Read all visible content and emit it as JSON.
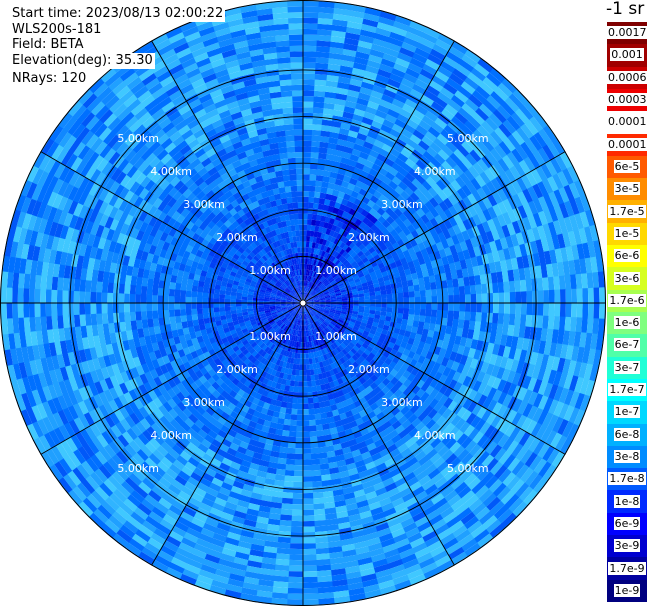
{
  "header": {
    "start_time": "Start time: 2023/08/13 02:00:22",
    "instrument": "WLS200s-181",
    "field": "Field: BETA",
    "elevation": "Elevation(deg): 35.30",
    "nrays": "NRays: 120"
  },
  "colorbar": {
    "unit": "-1 sr",
    "labels": [
      "0.0017",
      "0.001",
      "0.0006",
      "0.0003",
      "0.00017",
      "0.0001",
      "6e-5",
      "3e-5",
      "1.7e-5",
      "1e-5",
      "6e-6",
      "3e-6",
      "1.7e-6",
      "1e-6",
      "6e-7",
      "3e-7",
      "1.7e-7",
      "1e-7",
      "6e-8",
      "3e-8",
      "1.7e-8",
      "1e-8",
      "6e-9",
      "3e-9",
      "1.7e-9",
      "1e-9"
    ],
    "colors": [
      "#7f0000",
      "#a00000",
      "#cc0000",
      "#ee0000",
      "#ffffff",
      "#ff2a00",
      "#ff5a00",
      "#ff8c00",
      "#ffb000",
      "#ffd800",
      "#ffff00",
      "#d6ff20",
      "#a8ff50",
      "#7fff7f",
      "#50ffa8",
      "#20ffd6",
      "#00ffff",
      "#00d8ff",
      "#00b0ff",
      "#008cff",
      "#005aff",
      "#002aff",
      "#0000ff",
      "#0000d0",
      "#0000a0",
      "#00007f"
    ]
  },
  "chart_data": {
    "type": "polar-ppi",
    "title": "",
    "field": "BETA",
    "units": "-1 sr",
    "n_rays": 120,
    "elevation_deg": 35.3,
    "range_rings_km": [
      1.0,
      2.0,
      3.0,
      4.0,
      5.0
    ],
    "range_labels": [
      "1.00km",
      "2.00km",
      "3.00km",
      "4.00km",
      "5.00km"
    ],
    "spokes_deg": [
      0,
      30,
      60,
      90,
      120,
      150,
      180,
      210,
      240,
      270,
      300,
      330
    ],
    "max_range_km": 6.5,
    "value_range": [
      1e-09,
      0.0017
    ],
    "typical_values": {
      "near_center": 1e-08,
      "mid_range": 3e-08,
      "outer_range": 1e-07
    }
  }
}
